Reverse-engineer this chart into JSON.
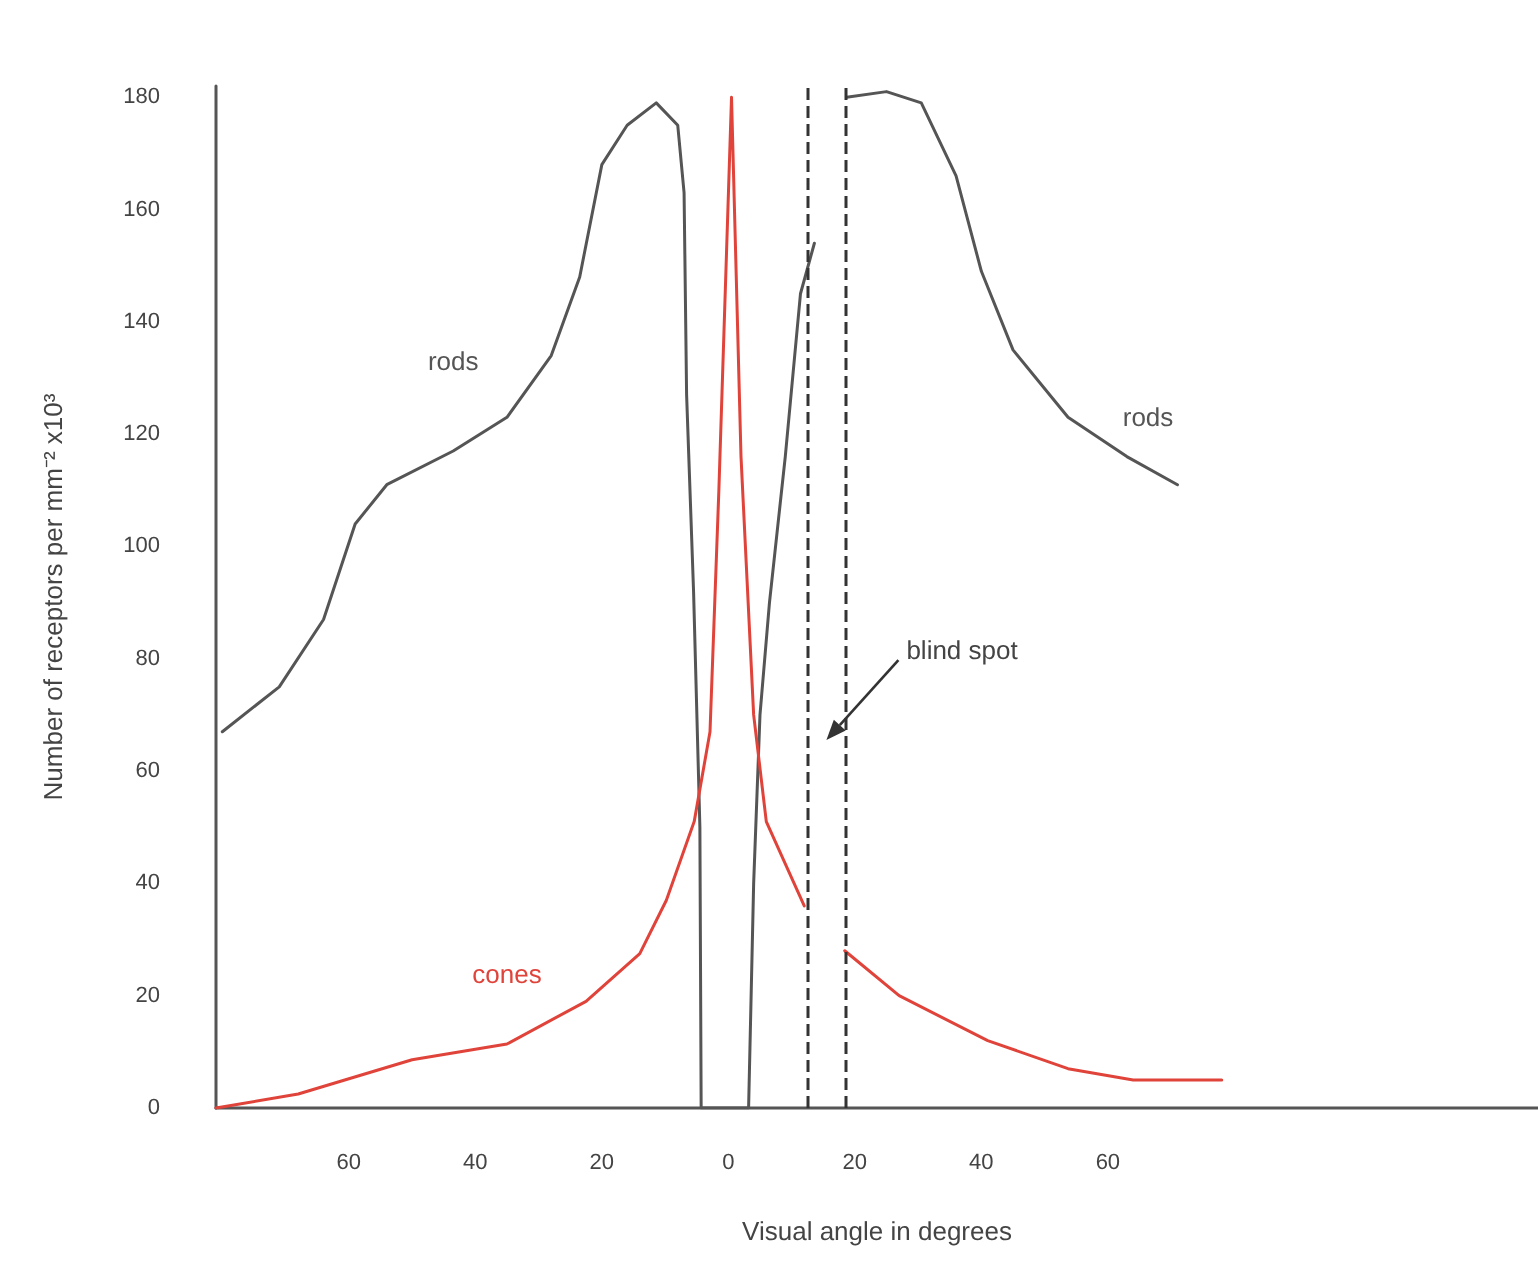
{
  "chart_data": {
    "type": "line",
    "xlabel": "Visual angle in degrees",
    "ylabel": "Number of receptors per mm⁻² x10³",
    "xlim": [
      -81,
      128
    ],
    "ylim": [
      0,
      182
    ],
    "xticks": [
      {
        "value": -60,
        "label": "60"
      },
      {
        "value": -40,
        "label": "40"
      },
      {
        "value": -20,
        "label": "20"
      },
      0,
      20,
      40,
      60
    ],
    "yticks": [
      0,
      20,
      40,
      60,
      80,
      100,
      120,
      140,
      160,
      180
    ],
    "grid": false,
    "legend": false,
    "marker": "none",
    "series": [
      {
        "name": "rods",
        "color": "#555555",
        "x": [
          -80,
          -71,
          -64,
          -59,
          -54,
          -43.5,
          -35,
          -28,
          -23.5,
          -20,
          -16,
          -11.4,
          -8,
          -7,
          -6.6,
          -5.5,
          -4.5,
          -4.3,
          3.2,
          4,
          5,
          6.5,
          9,
          11.4,
          13.6,
          16,
          18.7,
          25,
          30.5,
          36,
          40,
          45,
          53.7,
          63,
          71
        ],
        "values": [
          67,
          75,
          87,
          104,
          111,
          117,
          123,
          134,
          148,
          168,
          175,
          179,
          175,
          163,
          127,
          92,
          50,
          0,
          0,
          40,
          70,
          90,
          116,
          145,
          154,
          null,
          180,
          181,
          179,
          166,
          149,
          135,
          123,
          116,
          111
        ]
      },
      {
        "name": "cones",
        "color": "#e0433a",
        "x": [
          -81,
          -68,
          -50,
          -35,
          -22.5,
          -14,
          -9.8,
          -5.4,
          -2.9,
          -1.5,
          0.5,
          2,
          4,
          6,
          9.2,
          12,
          15,
          18.4,
          27,
          41,
          53.7,
          64,
          78
        ],
        "values": [
          0,
          2.5,
          8.6,
          11.4,
          19,
          27.5,
          37,
          51,
          67,
          110,
          180,
          116,
          70,
          51,
          43,
          36,
          null,
          28,
          20,
          12,
          7,
          5,
          5
        ]
      }
    ],
    "ref_lines": [
      {
        "axis": "x",
        "value": 12.5,
        "color": "#333333",
        "line_style": "dashed"
      },
      {
        "axis": "x",
        "value": 18.5,
        "color": "#333333",
        "line_style": "dashed"
      }
    ],
    "annotations": [
      "blind spot"
    ]
  }
}
